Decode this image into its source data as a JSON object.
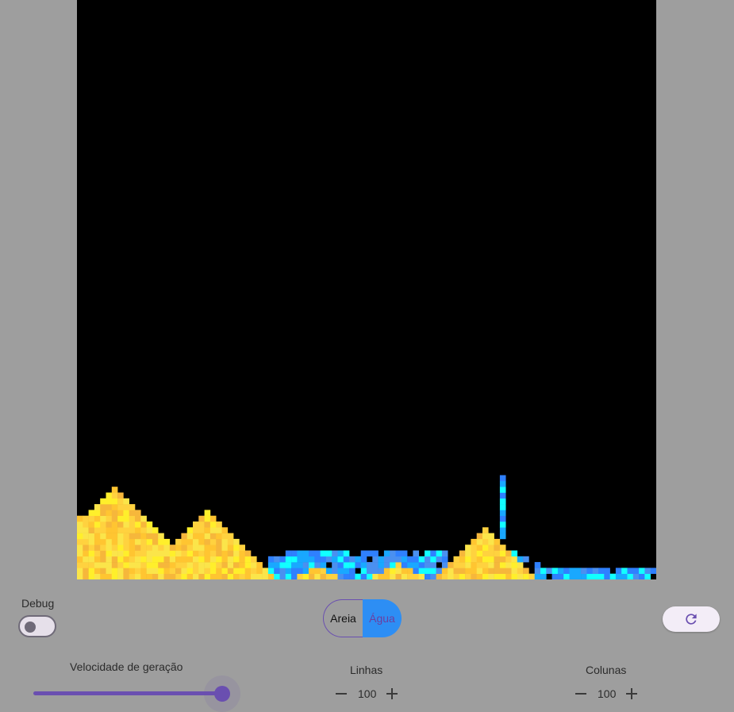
{
  "simulation": {
    "grid_rows": 100,
    "grid_columns": 100,
    "background_color": "#000000",
    "sand_colors": [
      "#ffd23f",
      "#ffc531",
      "#fbe54a",
      "#f6b73b",
      "#ffef2b"
    ],
    "water_colors": [
      "#2f80ff",
      "#19a8ff",
      "#12ffff",
      "#4a90f0"
    ]
  },
  "debug": {
    "label": "Debug",
    "enabled": false
  },
  "material_toggle": {
    "options": [
      "Areia",
      "Água"
    ],
    "selected": "Água",
    "selected_color": "#2d8ef4"
  },
  "reset_button": {
    "icon": "refresh-icon"
  },
  "speed": {
    "label": "Velocidade de geração",
    "value_fraction": 1.0,
    "accent": "#6a4fb0"
  },
  "rows": {
    "label": "Linhas",
    "value": "100"
  },
  "columns": {
    "label": "Colunas",
    "value": "100"
  }
}
